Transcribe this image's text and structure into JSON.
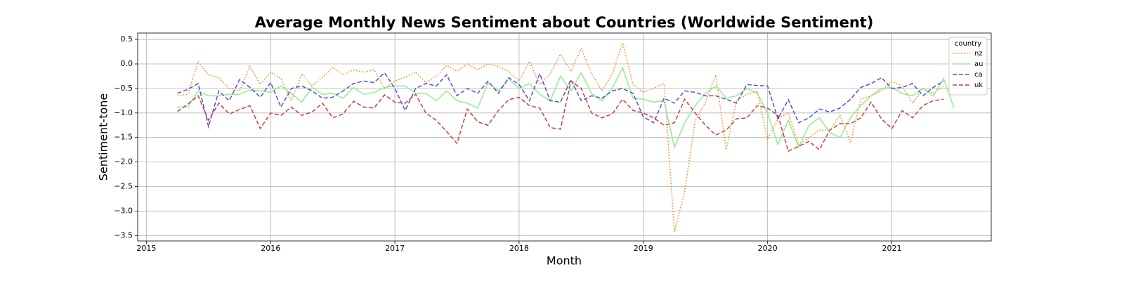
{
  "chart_data": {
    "type": "line",
    "title": "Average Monthly News Sentiment about Countries (Worldwide Sentiment)",
    "xlabel": "Month",
    "ylabel": "Sentiment-tone",
    "legend_title": "country",
    "legend": "upper right",
    "grid": true,
    "xlim": [
      2014.93,
      2021.8
    ],
    "xticks": [
      2015,
      2016,
      2017,
      2018,
      2019,
      2020,
      2021
    ],
    "ylim": [
      -3.61,
      0.63
    ],
    "yticks": [
      0.5,
      {
        "value": 0,
        "label": "0.0"
      },
      {
        "value": -0.5,
        "label": "−0.5"
      },
      {
        "value": -1,
        "label": "−1.0"
      },
      {
        "value": -1.5,
        "label": "−1.5"
      },
      {
        "value": -2,
        "label": "−2.0"
      },
      {
        "value": -2.5,
        "label": "−2.5"
      },
      {
        "value": -3,
        "label": "−3.0"
      },
      {
        "value": -3.5,
        "label": "−3.5"
      }
    ],
    "x": [
      2015.25,
      2015.333,
      2015.417,
      2015.5,
      2015.583,
      2015.667,
      2015.75,
      2015.833,
      2015.917,
      2016,
      2016.083,
      2016.167,
      2016.25,
      2016.333,
      2016.417,
      2016.5,
      2016.583,
      2016.667,
      2016.75,
      2016.833,
      2016.917,
      2017,
      2017.083,
      2017.167,
      2017.25,
      2017.333,
      2017.417,
      2017.5,
      2017.583,
      2017.667,
      2017.75,
      2017.833,
      2017.917,
      2018,
      2018.083,
      2018.167,
      2018.25,
      2018.333,
      2018.417,
      2018.5,
      2018.583,
      2018.667,
      2018.75,
      2018.833,
      2018.917,
      2019,
      2019.083,
      2019.167,
      2019.25,
      2019.333,
      2019.417,
      2019.5,
      2019.583,
      2019.667,
      2019.75,
      2019.833,
      2019.917,
      2020,
      2020.083,
      2020.167,
      2020.25,
      2020.333,
      2020.417,
      2020.5,
      2020.583,
      2020.667,
      2020.75,
      2020.833,
      2020.917,
      2021,
      2021.083,
      2021.167,
      2021.25,
      2021.333,
      2021.417,
      2021.5
    ],
    "series": [
      {
        "name": "nz",
        "color": "#ff7f0e",
        "style": "dotted",
        "values": [
          -0.65,
          -0.62,
          0.05,
          -0.22,
          -0.28,
          -0.5,
          -0.55,
          -0.05,
          -0.42,
          -0.17,
          -0.3,
          -0.75,
          -0.2,
          -0.45,
          -0.28,
          -0.07,
          -0.22,
          -0.12,
          -0.17,
          -0.12,
          -0.5,
          -0.35,
          -0.27,
          -0.17,
          -0.38,
          -0.25,
          -0.03,
          -0.15,
          0.0,
          -0.12,
          0.0,
          -0.05,
          -0.15,
          -0.35,
          0.05,
          -0.42,
          -0.2,
          0.2,
          -0.15,
          0.32,
          -0.2,
          -0.55,
          -0.2,
          0.43,
          -0.42,
          -0.58,
          -0.5,
          -0.4,
          -3.42,
          -2.6,
          -1.15,
          -0.78,
          -0.22,
          -1.75,
          -0.75,
          -0.62,
          -0.55,
          -1.55,
          -1.12,
          -1.0,
          -1.65,
          -1.5,
          -1.35,
          -1.35,
          -1.05,
          -1.6,
          -0.72,
          -0.65,
          -0.55,
          -0.35,
          -0.45,
          -0.8,
          -0.5,
          -0.6,
          -0.45,
          null
        ]
      },
      {
        "name": "au",
        "color": "#90ee90",
        "style": "solid",
        "values": [
          -0.88,
          -0.88,
          -0.55,
          -0.65,
          -0.65,
          -0.62,
          -0.62,
          -0.53,
          -0.55,
          -0.58,
          -0.45,
          -0.6,
          -0.78,
          -0.48,
          -0.62,
          -0.6,
          -0.7,
          -0.48,
          -0.62,
          -0.58,
          -0.48,
          -0.45,
          -0.45,
          -0.6,
          -0.6,
          -0.75,
          -0.55,
          -0.75,
          -0.8,
          -0.9,
          -0.38,
          -0.55,
          -0.3,
          -0.5,
          -0.4,
          -0.62,
          -0.75,
          -0.25,
          -0.55,
          -0.18,
          -0.6,
          -0.75,
          -0.5,
          -0.08,
          -0.7,
          -0.72,
          -0.78,
          -0.75,
          -1.7,
          -1.2,
          -0.85,
          -0.6,
          -0.45,
          -0.7,
          -0.65,
          -0.5,
          -0.6,
          -1.0,
          -1.65,
          -1.15,
          -1.7,
          -1.25,
          -1.1,
          -1.4,
          -1.5,
          -1.1,
          -0.85,
          -0.65,
          -0.5,
          -0.48,
          -0.6,
          -0.65,
          -0.5,
          -0.65,
          -0.3,
          -0.9
        ]
      },
      {
        "name": "ca",
        "color": "#5a4fcf",
        "style": "dashed",
        "values": [
          -0.6,
          -0.52,
          -0.4,
          -1.28,
          -0.55,
          -0.75,
          -0.32,
          -0.48,
          -0.68,
          -0.38,
          -0.88,
          -0.5,
          -0.45,
          -0.55,
          -0.7,
          -0.68,
          -0.55,
          -0.4,
          -0.35,
          -0.38,
          -0.18,
          -0.5,
          -0.95,
          -0.5,
          -0.4,
          -0.45,
          -0.22,
          -0.65,
          -0.5,
          -0.6,
          -0.35,
          -0.6,
          -0.28,
          -0.42,
          -0.75,
          -0.2,
          -0.75,
          -0.78,
          -0.32,
          -0.75,
          -0.65,
          -0.7,
          -0.55,
          -0.5,
          -0.6,
          -1.08,
          -1.2,
          -0.7,
          -0.8,
          -0.55,
          -0.58,
          -0.65,
          -0.65,
          -0.72,
          -0.8,
          -0.42,
          -0.44,
          -0.45,
          -1.12,
          -0.73,
          -1.2,
          -1.1,
          -0.92,
          -0.98,
          -0.9,
          -0.72,
          -0.48,
          -0.4,
          -0.28,
          -0.5,
          -0.48,
          -0.4,
          -0.65,
          -0.48,
          -0.35,
          null
        ]
      },
      {
        "name": "uk",
        "color": "#cd3f3f",
        "style": "dashed",
        "values": [
          -0.97,
          -0.82,
          -0.65,
          -1.15,
          -0.8,
          -1.02,
          -0.93,
          -0.85,
          -1.32,
          -1.0,
          -1.05,
          -0.88,
          -1.05,
          -0.98,
          -0.8,
          -1.1,
          -1.02,
          -0.76,
          -0.88,
          -0.9,
          -0.63,
          -0.78,
          -0.8,
          -0.62,
          -1.0,
          -1.15,
          -1.38,
          -1.62,
          -0.92,
          -1.18,
          -1.25,
          -0.95,
          -0.73,
          -0.68,
          -0.85,
          -0.9,
          -1.3,
          -1.33,
          -0.35,
          -0.5,
          -1.0,
          -1.1,
          -1.02,
          -0.72,
          -0.95,
          -1.0,
          -1.1,
          -1.25,
          -1.2,
          -0.72,
          -1.0,
          -1.25,
          -1.45,
          -1.35,
          -1.12,
          -1.1,
          -0.85,
          -0.9,
          -1.05,
          -1.78,
          -1.68,
          -1.58,
          -1.75,
          -1.35,
          -1.22,
          -1.22,
          -1.1,
          -0.78,
          -1.12,
          -1.32,
          -0.95,
          -1.1,
          -0.85,
          -0.75,
          -0.72,
          null
        ]
      }
    ]
  }
}
